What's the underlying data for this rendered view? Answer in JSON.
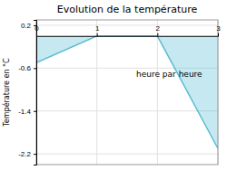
{
  "chart_data": {
    "type": "area",
    "title": "Evolution de la température",
    "ylabel": "Température en °C",
    "annotations": [
      "heure par heure"
    ],
    "x": [
      0,
      1,
      2,
      3
    ],
    "series": [
      {
        "color": "#5bbcd4",
        "values": [
          -0.5,
          0.0,
          0.0,
          -2.1
        ]
      }
    ],
    "xlim": [
      0,
      3.0
    ],
    "ylim": [
      -2.4,
      0.3
    ],
    "xticks": [
      0,
      1,
      2,
      3
    ],
    "yticks": [
      0.2,
      -0.6,
      -1.4,
      -2.2
    ],
    "grid": true
  }
}
